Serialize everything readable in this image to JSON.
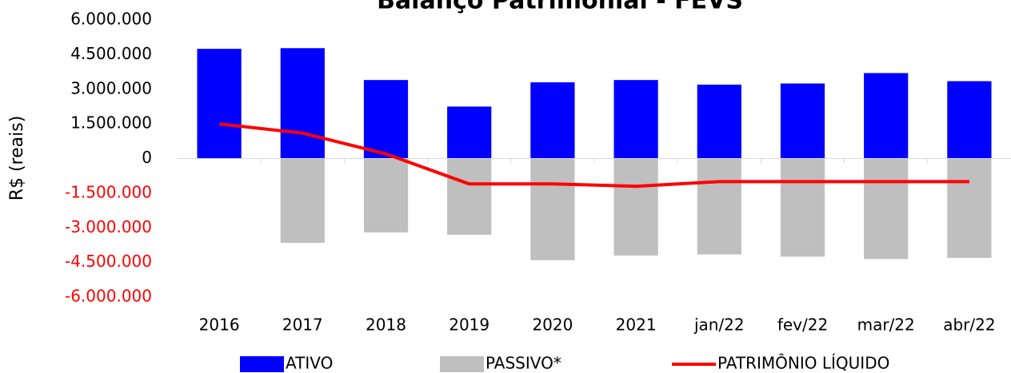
{
  "chart_data": {
    "type": "bar_line",
    "title": "Balanço Patrimonial - FEVS",
    "y_label": "R$ (reais)",
    "categories": [
      "2016",
      "2017",
      "2018",
      "2019",
      "2020",
      "2021",
      "jan/22",
      "fev/22",
      "mar/22",
      "abr/22"
    ],
    "series": [
      {
        "name": "ATIVO",
        "type": "bar",
        "color": "#0000ff",
        "values": [
          4750000,
          4780000,
          3400000,
          2250000,
          3300000,
          3400000,
          3200000,
          3250000,
          3700000,
          3350000
        ]
      },
      {
        "name": "PASSIVO*",
        "type": "bar",
        "color": "#bfbfbf",
        "values": [
          0,
          -3650000,
          -3200000,
          -3300000,
          -4400000,
          -4200000,
          -4150000,
          -4250000,
          -4350000,
          -4300000
        ]
      },
      {
        "name": "PATRIMÔNIO LÍQUIDO",
        "type": "line",
        "color": "#ff0000",
        "values": [
          1500000,
          1100000,
          200000,
          -1100000,
          -1100000,
          -1200000,
          -1000000,
          -1000000,
          -1000000,
          -1000000
        ]
      }
    ],
    "ylim": [
      -6000000,
      6000000
    ],
    "yticks": [
      {
        "value": -6000000,
        "label": "-6.000.000"
      },
      {
        "value": -4500000,
        "label": "-4.500.000"
      },
      {
        "value": -3000000,
        "label": "-3.000.000"
      },
      {
        "value": -1500000,
        "label": "-1.500.000"
      },
      0,
      {
        "value": 1500000,
        "label": "1.500.000"
      },
      {
        "value": 3000000,
        "label": "3.000.000"
      },
      {
        "value": 4500000,
        "label": "4.500.000"
      },
      {
        "value": 6000000,
        "label": "6.000.000"
      }
    ],
    "negative_tick_color": "#ff0000",
    "grid": false,
    "legend": "bottom"
  }
}
